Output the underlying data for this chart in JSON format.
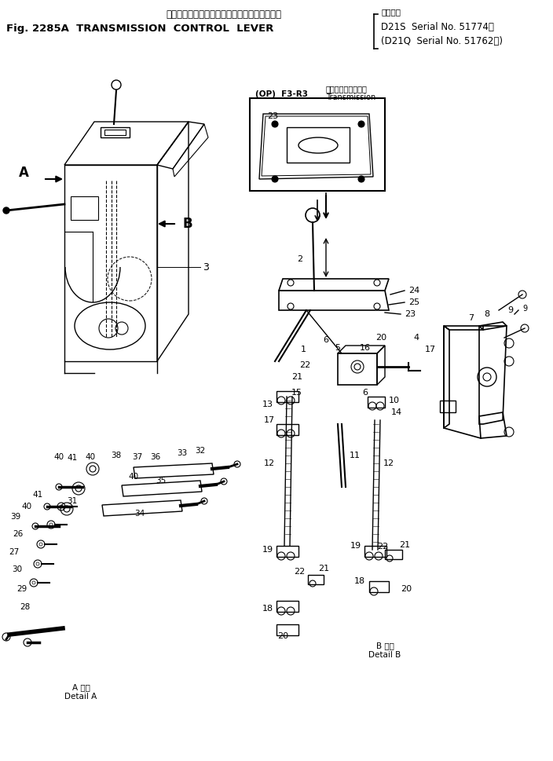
{
  "title_jp": "トランスミッション　コントロール　レバー（",
  "title_en": "Fig. 2285A  TRANSMISSION  CONTROL  LEVER",
  "serial_label": "適用号機",
  "serial_line1": "D21S  Serial No. 51774～",
  "serial_line2": "(D21Q  Serial No. 51762～)",
  "fig_bg": "#ffffff",
  "line_color": "#000000",
  "text_color": "#000000",
  "detail_a_jp": "A 詳細",
  "detail_a_en": "Detail A",
  "detail_b_jp": "B 詳細",
  "detail_b_en": "Detail B",
  "inset_label_jp": "トランスミッション",
  "inset_label_en": "Transmission",
  "inset_op": "(OP)  F3-R3"
}
